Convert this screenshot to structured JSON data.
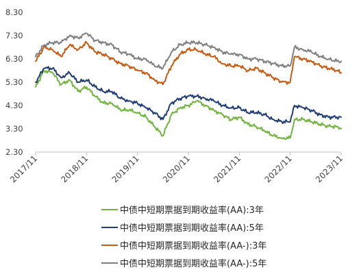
{
  "chart_data": {
    "type": "line",
    "title": "",
    "xlabel": "",
    "ylabel": "",
    "ylim": [
      2.3,
      8.3
    ],
    "yticks": [
      "8.30",
      "7.30",
      "6.30",
      "5.30",
      "4.30",
      "3.30",
      "2.30"
    ],
    "xticks": [
      "2017/11",
      "2018/11",
      "2019/11",
      "2020/11",
      "2021/11",
      "2022/11",
      "2023/11"
    ],
    "grid": false,
    "legend_position": "bottom",
    "series": [
      {
        "name": "中债中短期票据到期收益率(AA):3年",
        "color": "#70b33e",
        "points": [
          [
            "2017/11",
            5.1
          ],
          [
            "2018/01",
            5.8
          ],
          [
            "2018/03",
            5.7
          ],
          [
            "2018/05",
            5.2
          ],
          [
            "2018/07",
            5.4
          ],
          [
            "2018/09",
            4.9
          ],
          [
            "2018/11",
            5.1
          ],
          [
            "2019/01",
            4.7
          ],
          [
            "2019/03",
            4.4
          ],
          [
            "2019/05",
            4.4
          ],
          [
            "2019/07",
            4.1
          ],
          [
            "2019/09",
            4.1
          ],
          [
            "2019/11",
            4.0
          ],
          [
            "2020/01",
            3.8
          ],
          [
            "2020/03",
            3.4
          ],
          [
            "2020/05",
            3.0
          ],
          [
            "2020/07",
            3.9
          ],
          [
            "2020/09",
            4.2
          ],
          [
            "2020/11",
            4.3
          ],
          [
            "2021/01",
            4.5
          ],
          [
            "2021/03",
            4.3
          ],
          [
            "2021/05",
            4.1
          ],
          [
            "2021/07",
            3.9
          ],
          [
            "2021/09",
            3.7
          ],
          [
            "2021/11",
            3.8
          ],
          [
            "2022/01",
            3.5
          ],
          [
            "2022/03",
            3.4
          ],
          [
            "2022/05",
            3.2
          ],
          [
            "2022/07",
            3.0
          ],
          [
            "2022/09",
            2.9
          ],
          [
            "2022/11",
            2.9
          ],
          [
            "2022/12",
            3.7
          ],
          [
            "2023/02",
            3.7
          ],
          [
            "2023/04",
            3.6
          ],
          [
            "2023/06",
            3.5
          ],
          [
            "2023/08",
            3.4
          ],
          [
            "2023/10",
            3.4
          ],
          [
            "2023/11",
            3.3
          ]
        ]
      },
      {
        "name": "中债中短期票据到期收益率(AA):5年",
        "color": "#1f3b73",
        "points": [
          [
            "2017/11",
            5.3
          ],
          [
            "2018/01",
            5.9
          ],
          [
            "2018/03",
            5.9
          ],
          [
            "2018/05",
            5.5
          ],
          [
            "2018/07",
            5.7
          ],
          [
            "2018/09",
            5.3
          ],
          [
            "2018/11",
            5.4
          ],
          [
            "2019/01",
            5.1
          ],
          [
            "2019/03",
            4.9
          ],
          [
            "2019/05",
            4.9
          ],
          [
            "2019/07",
            4.6
          ],
          [
            "2019/09",
            4.5
          ],
          [
            "2019/11",
            4.4
          ],
          [
            "2020/01",
            4.2
          ],
          [
            "2020/03",
            4.0
          ],
          [
            "2020/05",
            3.7
          ],
          [
            "2020/07",
            4.4
          ],
          [
            "2020/09",
            4.6
          ],
          [
            "2020/11",
            4.7
          ],
          [
            "2021/01",
            4.7
          ],
          [
            "2021/03",
            4.6
          ],
          [
            "2021/05",
            4.5
          ],
          [
            "2021/07",
            4.3
          ],
          [
            "2021/09",
            4.2
          ],
          [
            "2021/11",
            4.2
          ],
          [
            "2022/01",
            4.0
          ],
          [
            "2022/03",
            4.0
          ],
          [
            "2022/05",
            3.9
          ],
          [
            "2022/07",
            3.7
          ],
          [
            "2022/09",
            3.6
          ],
          [
            "2022/11",
            3.6
          ],
          [
            "2022/12",
            4.3
          ],
          [
            "2023/02",
            4.2
          ],
          [
            "2023/04",
            4.1
          ],
          [
            "2023/06",
            3.9
          ],
          [
            "2023/08",
            3.8
          ],
          [
            "2023/10",
            3.8
          ],
          [
            "2023/11",
            3.8
          ]
        ]
      },
      {
        "name": "中债中短期票据到期收益率(AA-):3年",
        "color": "#c55a11",
        "points": [
          [
            "2017/11",
            6.2
          ],
          [
            "2018/01",
            6.8
          ],
          [
            "2018/03",
            6.7
          ],
          [
            "2018/05",
            6.4
          ],
          [
            "2018/07",
            6.9
          ],
          [
            "2018/09",
            6.7
          ],
          [
            "2018/11",
            7.0
          ],
          [
            "2019/01",
            6.6
          ],
          [
            "2019/03",
            6.5
          ],
          [
            "2019/05",
            6.3
          ],
          [
            "2019/07",
            6.1
          ],
          [
            "2019/09",
            6.0
          ],
          [
            "2019/11",
            5.8
          ],
          [
            "2020/01",
            5.7
          ],
          [
            "2020/03",
            5.4
          ],
          [
            "2020/05",
            5.2
          ],
          [
            "2020/07",
            6.0
          ],
          [
            "2020/09",
            6.5
          ],
          [
            "2020/11",
            6.7
          ],
          [
            "2021/01",
            6.7
          ],
          [
            "2021/03",
            6.5
          ],
          [
            "2021/05",
            6.4
          ],
          [
            "2021/07",
            6.1
          ],
          [
            "2021/09",
            6.0
          ],
          [
            "2021/11",
            6.0
          ],
          [
            "2022/01",
            5.8
          ],
          [
            "2022/03",
            5.9
          ],
          [
            "2022/05",
            5.7
          ],
          [
            "2022/07",
            5.5
          ],
          [
            "2022/09",
            5.3
          ],
          [
            "2022/11",
            5.3
          ],
          [
            "2022/12",
            6.4
          ],
          [
            "2023/02",
            6.3
          ],
          [
            "2023/04",
            6.2
          ],
          [
            "2023/06",
            6.0
          ],
          [
            "2023/08",
            5.9
          ],
          [
            "2023/10",
            5.8
          ],
          [
            "2023/11",
            5.7
          ]
        ]
      },
      {
        "name": "中债中短期票据到期收益率(AA-):5年",
        "color": "#7f7f7f",
        "points": [
          [
            "2017/11",
            6.4
          ],
          [
            "2018/01",
            6.9
          ],
          [
            "2018/03",
            7.0
          ],
          [
            "2018/05",
            7.0
          ],
          [
            "2018/07",
            7.3
          ],
          [
            "2018/09",
            7.2
          ],
          [
            "2018/11",
            7.4
          ],
          [
            "2019/01",
            7.1
          ],
          [
            "2019/03",
            7.0
          ],
          [
            "2019/05",
            6.9
          ],
          [
            "2019/07",
            6.6
          ],
          [
            "2019/09",
            6.5
          ],
          [
            "2019/11",
            6.3
          ],
          [
            "2020/01",
            6.3
          ],
          [
            "2020/03",
            6.0
          ],
          [
            "2020/05",
            5.9
          ],
          [
            "2020/07",
            6.6
          ],
          [
            "2020/09",
            6.9
          ],
          [
            "2020/11",
            7.0
          ],
          [
            "2021/01",
            7.0
          ],
          [
            "2021/03",
            6.9
          ],
          [
            "2021/05",
            6.8
          ],
          [
            "2021/07",
            6.6
          ],
          [
            "2021/09",
            6.5
          ],
          [
            "2021/11",
            6.5
          ],
          [
            "2022/01",
            6.3
          ],
          [
            "2022/03",
            6.3
          ],
          [
            "2022/05",
            6.2
          ],
          [
            "2022/07",
            6.1
          ],
          [
            "2022/09",
            6.0
          ],
          [
            "2022/11",
            6.0
          ],
          [
            "2022/12",
            6.8
          ],
          [
            "2023/02",
            6.7
          ],
          [
            "2023/04",
            6.6
          ],
          [
            "2023/06",
            6.4
          ],
          [
            "2023/08",
            6.3
          ],
          [
            "2023/10",
            6.2
          ],
          [
            "2023/11",
            6.2
          ]
        ]
      }
    ]
  }
}
